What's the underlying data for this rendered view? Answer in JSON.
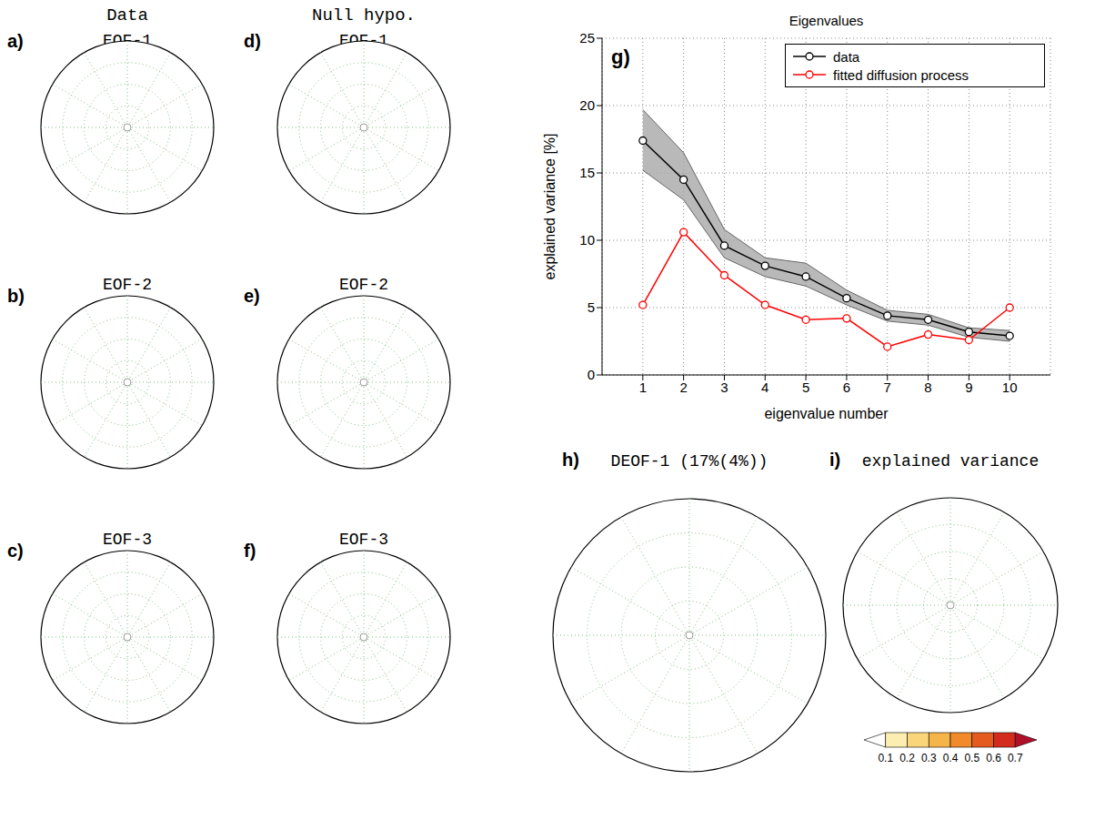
{
  "chart_data": [
    {
      "type": "map",
      "panel": "a)",
      "column_title": "Data",
      "title": "EOF-1"
    },
    {
      "type": "map",
      "panel": "b)",
      "title": "EOF-2"
    },
    {
      "type": "map",
      "panel": "c)",
      "title": "EOF-3"
    },
    {
      "type": "map",
      "panel": "d)",
      "column_title": "Null hypo.",
      "title": "EOF-1"
    },
    {
      "type": "map",
      "panel": "e)",
      "title": "EOF-2"
    },
    {
      "type": "map",
      "panel": "f)",
      "title": "EOF-3"
    },
    {
      "type": "line",
      "panel": "g)",
      "title": "Eigenvalues",
      "x_label": "eigenvalue number",
      "y_label": "explained variance [%]",
      "x": [
        1,
        2,
        3,
        4,
        5,
        6,
        7,
        8,
        9,
        10
      ],
      "series": [
        {
          "name": "data",
          "color": "#000000",
          "marker": "circle",
          "values": [
            17.4,
            14.5,
            9.6,
            8.1,
            7.3,
            5.7,
            4.4,
            4.1,
            3.2,
            2.9
          ],
          "band_lower": [
            15.2,
            13.0,
            8.7,
            7.3,
            6.6,
            5.2,
            4.0,
            3.7,
            2.8,
            2.5
          ],
          "band_upper": [
            19.7,
            16.5,
            10.8,
            8.7,
            8.3,
            6.3,
            4.8,
            4.5,
            3.5,
            3.3
          ]
        },
        {
          "name": "fitted diffusion process",
          "color": "#ff0000",
          "marker": "circle",
          "values": [
            5.2,
            10.6,
            7.4,
            5.2,
            4.1,
            4.2,
            2.1,
            3.0,
            2.6,
            5.0
          ]
        }
      ],
      "xlim": [
        0,
        11
      ],
      "xticks": [
        1,
        2,
        3,
        4,
        5,
        6,
        7,
        8,
        9,
        10
      ],
      "ylim": [
        0,
        25
      ],
      "yticks": [
        0,
        5,
        10,
        15,
        20,
        25
      ],
      "grid": true,
      "legend": "upper right"
    },
    {
      "type": "map",
      "panel": "h)",
      "title": "DEOF-1 (17%(4%))"
    },
    {
      "type": "map",
      "panel": "i)",
      "title": "explained variance",
      "colorbar": {
        "range": [
          0,
          0.8
        ],
        "ticks": [
          0.1,
          0.2,
          0.3,
          0.4,
          0.5,
          0.6,
          0.7
        ],
        "colors": [
          "#ffffff",
          "#fbeeb0",
          "#f9d67a",
          "#f6b54a",
          "#f08a2a",
          "#e55a1f",
          "#d42b1f",
          "#b0102a"
        ]
      }
    }
  ]
}
